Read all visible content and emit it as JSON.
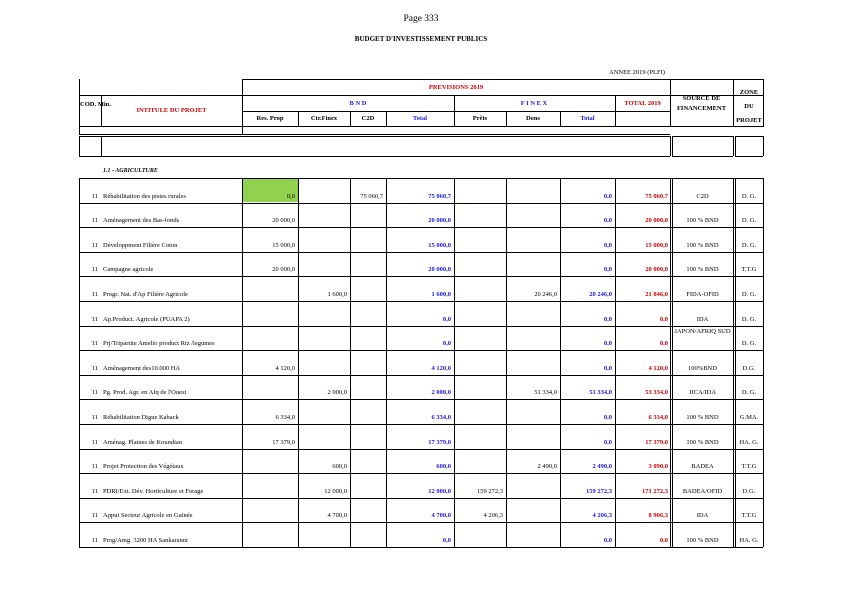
{
  "page_label": "Page 333",
  "doc_title": "BUDGET D'INVESTISSEMENT PUBLICS",
  "annee": "ANNEE 2019 (PLFI)",
  "headers": {
    "previsions": "PREVISIONS 2019",
    "cod_min": "COD. Min.",
    "intitule": "INTITULE DU PROJET",
    "bnd": "B N D",
    "finex": "F I N E X",
    "total_2019": "TOTAL 2019",
    "source": "SOURCE DE FINANCEMENT",
    "zone": "ZONE DU PROJET",
    "res_prop": "Res. Prop",
    "ctr_finex": "Ctr.Finex",
    "c2d": "C2D",
    "total_bnd": "Total",
    "prets": "Prêts",
    "dons": "Dons",
    "total_finex": "Total"
  },
  "section_title": "1.1 - AGRICULTURE",
  "colors": {
    "red": "#d00000",
    "blue": "#1a1ae0",
    "green_cell": "#92d050"
  },
  "rows": [
    {
      "cod": "11",
      "intitule": "Réhabilitation des pistes rurales",
      "res": "0,0",
      "ctr": "",
      "c2d": "75 060,7",
      "tbnd": "75 060,7",
      "prets": "",
      "dons": "",
      "tfin": "0,0",
      "total": "75 060,7",
      "source": "C2D",
      "zone": "D. G."
    },
    {
      "cod": "11",
      "intitule": "Aménagement des Bas-fonds",
      "res": "20 000,0",
      "ctr": "",
      "c2d": "",
      "tbnd": "20 000,0",
      "prets": "",
      "dons": "",
      "tfin": "0,0",
      "total": "20 000,0",
      "source": "100 % BND",
      "zone": "D. G."
    },
    {
      "cod": "11",
      "intitule": "Développment Filière Coton",
      "res": "15 000,0",
      "ctr": "",
      "c2d": "",
      "tbnd": "15 000,0",
      "prets": "",
      "dons": "",
      "tfin": "0,0",
      "total": "15 000,0",
      "source": "100 % BND",
      "zone": "D. G."
    },
    {
      "cod": "11",
      "intitule": "Campagne agricole",
      "res": "20 000,0",
      "ctr": "",
      "c2d": "",
      "tbnd": "20 000,0",
      "prets": "",
      "dons": "",
      "tfin": "0,0",
      "total": "20 000,0",
      "source": "100 % BND",
      "zone": "T.T.G"
    },
    {
      "cod": "11",
      "intitule": "Progr. Nat. d'Ap Filière Agricole",
      "res": "",
      "ctr": "1 600,0",
      "c2d": "",
      "tbnd": "1 600,0",
      "prets": "",
      "dons": "20 246,0",
      "tfin": "20 246,0",
      "total": "21 846,0",
      "source": "FIDA-OFID",
      "zone": "D. G."
    },
    {
      "cod": "11",
      "intitule": "Ap.Product. Agricole (PUAPA 2)",
      "res": "",
      "ctr": "",
      "c2d": "",
      "tbnd": "0,0",
      "prets": "",
      "dons": "",
      "tfin": "0,0",
      "total": "0,0",
      "source": "IDA",
      "zone": "D. G."
    },
    {
      "cod": "11",
      "intitule": "Prj/Tripartite Amelio product Riz /legumes",
      "res": "",
      "ctr": "",
      "c2d": "",
      "tbnd": "0,0",
      "prets": "",
      "dons": "",
      "tfin": "0,0",
      "total": "0,0",
      "source": "JAPON/AFRIQ SUD",
      "zone": "D. G."
    },
    {
      "cod": "11",
      "intitule": "Aménagement des10.000 HA",
      "res": "4 120,0",
      "ctr": "",
      "c2d": "",
      "tbnd": "4 120,0",
      "prets": "",
      "dons": "",
      "tfin": "0,0",
      "total": "4 120,0",
      "source": "100%BND",
      "zone": "D.G."
    },
    {
      "cod": "11",
      "intitule": "Pg. Prod. Agr. en Afq de l'Ouest",
      "res": "",
      "ctr": "2 000,0",
      "c2d": "",
      "tbnd": "2 000,0",
      "prets": "",
      "dons": "51 334,0",
      "tfin": "51 334,0",
      "total": "53 334,0",
      "source": "JICA/IDA",
      "zone": "D. G."
    },
    {
      "cod": "11",
      "intitule": "Réhabilitation Digue Kaback",
      "res": "6 334,0",
      "ctr": "",
      "c2d": "",
      "tbnd": "6 334,0",
      "prets": "",
      "dons": "",
      "tfin": "0,0",
      "total": "6 334,0",
      "source": "100 % BND",
      "zone": "G.MA."
    },
    {
      "cod": "11",
      "intitule": "Aménag. Plaines de Koundian",
      "res": "17 379,0",
      "ctr": "",
      "c2d": "",
      "tbnd": "17 379,0",
      "prets": "",
      "dons": "",
      "tfin": "0,0",
      "total": "17 379,0",
      "source": "100 % BND",
      "zone": "HA. G."
    },
    {
      "cod": "11",
      "intitule": "Projet Protection des Végétaux",
      "res": "",
      "ctr": "600,0",
      "c2d": "",
      "tbnd": "600,0",
      "prets": "",
      "dons": "2 490,0",
      "tfin": "2 490,0",
      "total": "3 090,0",
      "source": "BADEA",
      "zone": "T.T.G"
    },
    {
      "cod": "11",
      "intitule": "PDRI/Ext. Dév. Horticulture et Forage",
      "res": "",
      "ctr": "12 000,0",
      "c2d": "",
      "tbnd": "12 000,0",
      "prets": "159 272,3",
      "dons": "",
      "tfin": "159 272,3",
      "total": "171 272,3",
      "source": "BADEA/OFID",
      "zone": "D.G."
    },
    {
      "cod": "11",
      "intitule": "Appui Secteur Agricole en Guinée",
      "res": "",
      "ctr": "4 700,0",
      "c2d": "",
      "tbnd": "4 700,0",
      "prets": "4 206,3",
      "dons": "",
      "tfin": "4 206,3",
      "total": "8 906,3",
      "source": "IDA",
      "zone": "T.T.G"
    },
    {
      "cod": "11",
      "intitule": "Prog/Amg. 3200 HA Sankaranni",
      "res": "",
      "ctr": "",
      "c2d": "",
      "tbnd": "0,0",
      "prets": "",
      "dons": "",
      "tfin": "0,0",
      "total": "0,0",
      "source": "100 % BND",
      "zone": "HA. G."
    }
  ]
}
